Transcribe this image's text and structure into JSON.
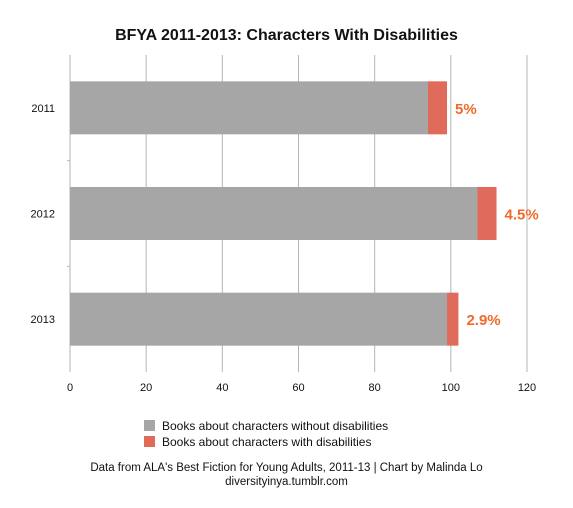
{
  "chart_data": {
    "type": "bar",
    "orientation": "horizontal",
    "stacked": true,
    "title": "BFYA 2011-2013: Characters With Disabilities",
    "categories": [
      "2011",
      "2012",
      "2013"
    ],
    "series": [
      {
        "name": "Books about characters without disabilities",
        "values": [
          94,
          107,
          99
        ],
        "color": "#a6a6a6"
      },
      {
        "name": "Books about characters with disabilities",
        "values": [
          5,
          5,
          3
        ],
        "color": "#e06b5a"
      }
    ],
    "data_labels": [
      "5%",
      "4.5%",
      "2.9%"
    ],
    "data_label_color": "#f06a2a",
    "xlim": [
      0,
      120
    ],
    "xticks": [
      "0",
      "20",
      "40",
      "60",
      "80",
      "100",
      "120"
    ],
    "grid": true,
    "legend_position": "bottom"
  },
  "footer": {
    "line1": "Data from ALA's Best Fiction for Young Adults, 2011-13 | Chart by Malinda Lo",
    "line2": "diversityinya.tumblr.com"
  }
}
